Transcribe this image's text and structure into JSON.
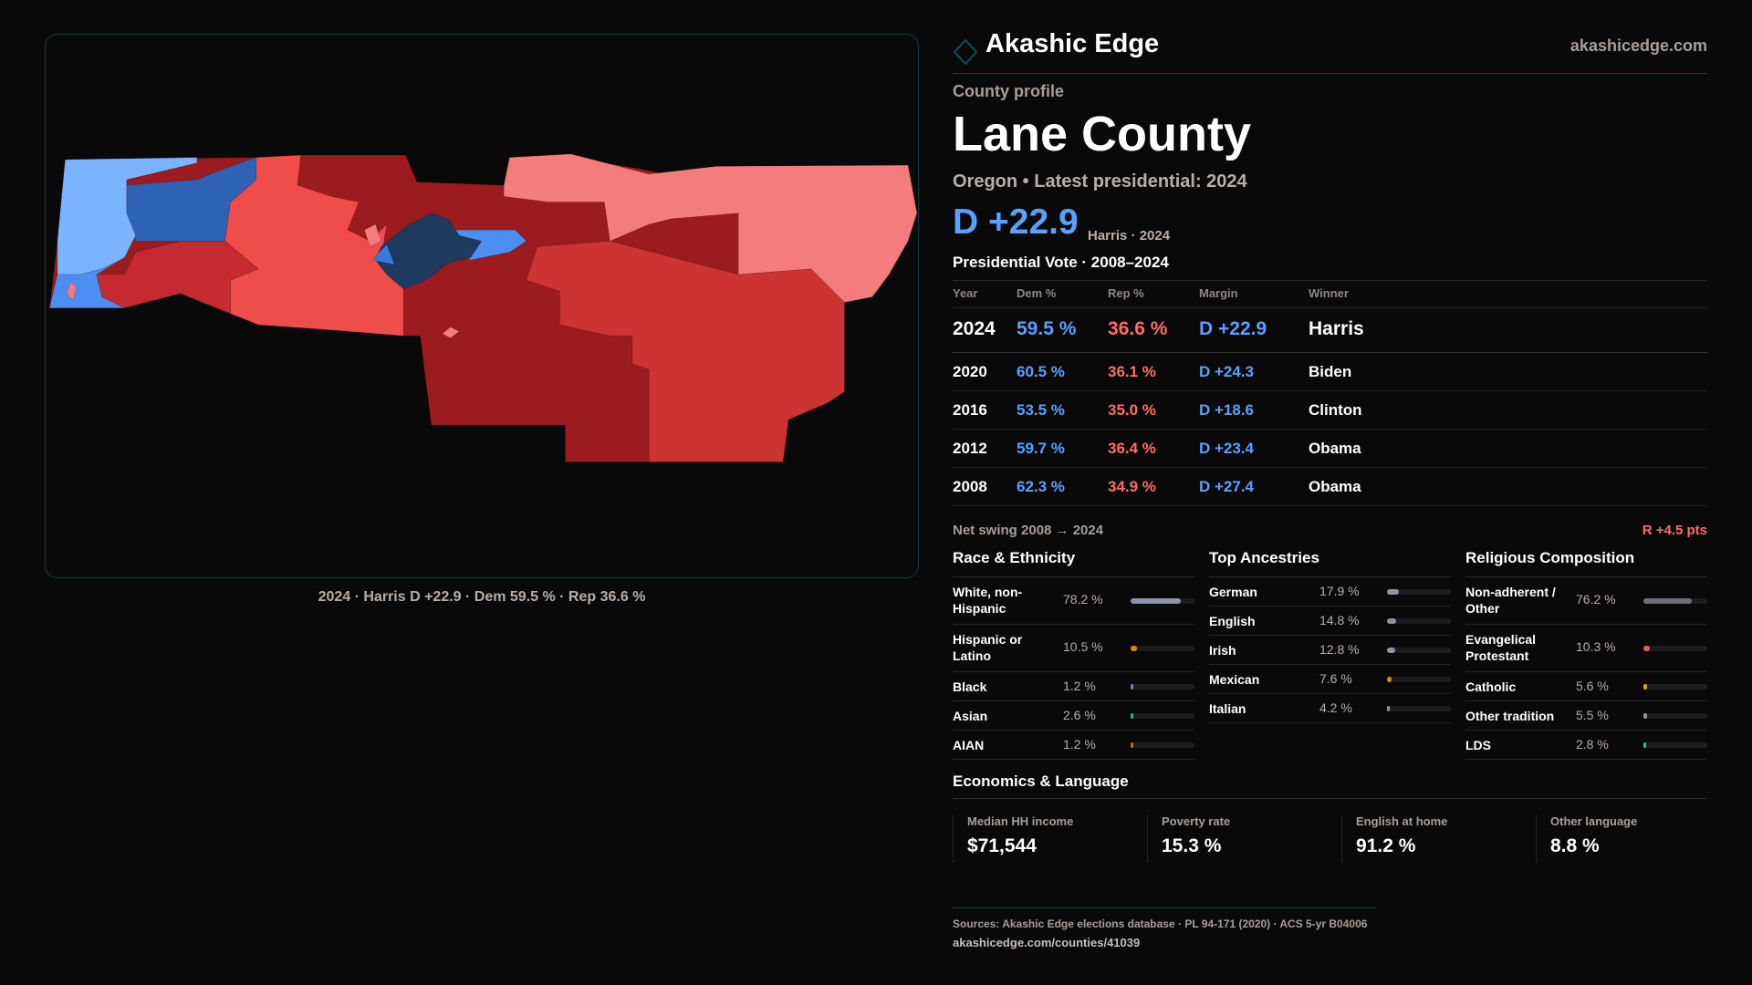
{
  "brand": {
    "name": "Akashic Edge",
    "site": "akashicedge.com"
  },
  "profile": {
    "kicker": "County profile",
    "title": "Lane County",
    "subtitle": "Oregon • Latest presidential: 2024",
    "margin": "D +22.9",
    "margin_note": "Harris · 2024"
  },
  "map": {
    "caption": "2024 · Harris D +22.9 · Dem 59.5 % · Rep 36.6 %",
    "colors": {
      "d_strong": "#1e3a5f",
      "d_mid": "#2e62b5",
      "d_bright": "#4d8ff0",
      "d_light": "#7ab4ff",
      "r_light": "#f47c7c",
      "r_mid": "#ef4c4c",
      "r_strong": "#cc3333",
      "r_dark": "#9b1b1e"
    }
  },
  "votes": {
    "title": "Presidential Vote · 2008–2024",
    "headers": [
      "Year",
      "Dem %",
      "Rep %",
      "Margin",
      "Winner"
    ],
    "rows": [
      {
        "year": "2024",
        "dem": "59.5 %",
        "rep": "36.6 %",
        "margin": "D +22.9",
        "winner": "Harris"
      },
      {
        "year": "2020",
        "dem": "60.5 %",
        "rep": "36.1 %",
        "margin": "D +24.3",
        "winner": "Biden"
      },
      {
        "year": "2016",
        "dem": "53.5 %",
        "rep": "35.0 %",
        "margin": "D +18.6",
        "winner": "Clinton"
      },
      {
        "year": "2012",
        "dem": "59.7 %",
        "rep": "36.4 %",
        "margin": "D +23.4",
        "winner": "Obama"
      },
      {
        "year": "2008",
        "dem": "62.3 %",
        "rep": "34.9 %",
        "margin": "D +27.4",
        "winner": "Obama"
      }
    ],
    "swing_label": "Net swing 2008 → 2024",
    "swing_value": "R +4.5 pts"
  },
  "demographics": [
    {
      "title": "Race & Ethnicity",
      "items": [
        {
          "label": "White, non-Hispanic",
          "value": "78.2 %",
          "pct": 78.2,
          "color": "#8a94a6"
        },
        {
          "label": "Hispanic or Latino",
          "value": "10.5 %",
          "pct": 10.5,
          "color": "#d48a0a"
        },
        {
          "label": "Black",
          "value": "1.2 %",
          "pct": 1.2,
          "color": "#8a6fd6"
        },
        {
          "label": "Asian",
          "value": "2.6 %",
          "pct": 2.6,
          "color": "#2bb58a"
        },
        {
          "label": "AIAN",
          "value": "1.2 %",
          "pct": 1.2,
          "color": "#c06a1a"
        }
      ]
    },
    {
      "title": "Top Ancestries",
      "items": [
        {
          "label": "German",
          "value": "17.9 %",
          "pct": 17.9,
          "color": "#8a94a6"
        },
        {
          "label": "English",
          "value": "14.8 %",
          "pct": 14.8,
          "color": "#8a94a6"
        },
        {
          "label": "Irish",
          "value": "12.8 %",
          "pct": 12.8,
          "color": "#8a94a6"
        },
        {
          "label": "Mexican",
          "value": "7.6 %",
          "pct": 7.6,
          "color": "#d48a0a"
        },
        {
          "label": "Italian",
          "value": "4.2 %",
          "pct": 4.2,
          "color": "#8a94a6"
        }
      ]
    },
    {
      "title": "Religious Composition",
      "items": [
        {
          "label": "Non-adherent / Other",
          "value": "76.2 %",
          "pct": 76.2,
          "color": "#6b6e78"
        },
        {
          "label": "Evangelical Protestant",
          "value": "10.3 %",
          "pct": 10.3,
          "color": "#e05a5a"
        },
        {
          "label": "Catholic",
          "value": "5.6 %",
          "pct": 5.6,
          "color": "#e0a010"
        },
        {
          "label": "Other tradition",
          "value": "5.5 %",
          "pct": 5.5,
          "color": "#8a94a6"
        },
        {
          "label": "LDS",
          "value": "2.8 %",
          "pct": 2.8,
          "color": "#2ab5a5"
        }
      ]
    }
  ],
  "economics": {
    "title": "Economics & Language",
    "stats": [
      {
        "label": "Median HH income",
        "value": "$71,544"
      },
      {
        "label": "Poverty rate",
        "value": "15.3 %"
      },
      {
        "label": "English at home",
        "value": "91.2 %"
      },
      {
        "label": "Other language",
        "value": "8.8 %"
      }
    ]
  },
  "footer": {
    "sources": "Sources: Akashic Edge elections database · PL 94-171 (2020) · ACS 5-yr B04006",
    "url": "akashicedge.com/counties/41039"
  }
}
